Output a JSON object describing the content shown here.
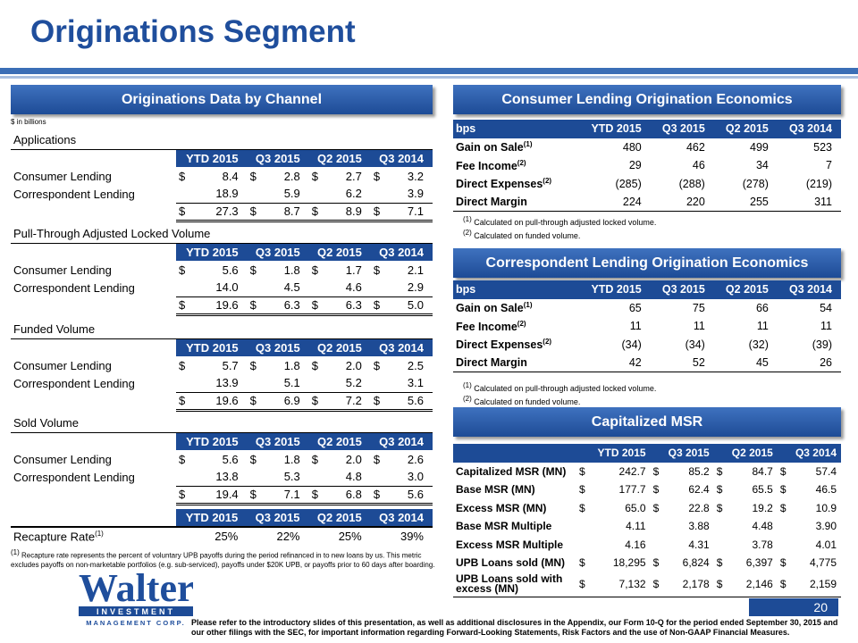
{
  "title": "Originations Segment",
  "left_banner": "Originations Data by Channel",
  "units": "$ in billions",
  "col_headers": [
    "YTD 2015",
    "Q3 2015",
    "Q2 2015",
    "Q3 2014"
  ],
  "applications": {
    "title": "Applications",
    "consumer": {
      "label": "Consumer Lending",
      "values": [
        "8.4",
        "2.8",
        "2.7",
        "3.2"
      ]
    },
    "correspondent": {
      "label": "Correspondent Lending",
      "values": [
        "18.9",
        "5.9",
        "6.2",
        "3.9"
      ]
    },
    "total": [
      "27.3",
      "8.7",
      "8.9",
      "7.1"
    ]
  },
  "pull_through": {
    "title": "Pull-Through Adjusted Locked Volume",
    "consumer": {
      "label": "Consumer Lending",
      "values": [
        "5.6",
        "1.8",
        "1.7",
        "2.1"
      ]
    },
    "correspondent": {
      "label": "Correspondent Lending",
      "values": [
        "14.0",
        "4.5",
        "4.6",
        "2.9"
      ]
    },
    "total": [
      "19.6",
      "6.3",
      "6.3",
      "5.0"
    ]
  },
  "funded": {
    "title": "Funded Volume",
    "consumer": {
      "label": "Consumer Lending",
      "values": [
        "5.7",
        "1.8",
        "2.0",
        "2.5"
      ]
    },
    "correspondent": {
      "label": "Correspondent Lending",
      "values": [
        "13.9",
        "5.1",
        "5.2",
        "3.1"
      ]
    },
    "total": [
      "19.6",
      "6.9",
      "7.2",
      "5.6"
    ]
  },
  "sold": {
    "title": "Sold Volume",
    "consumer": {
      "label": "Consumer Lending",
      "values": [
        "5.6",
        "1.8",
        "2.0",
        "2.6"
      ]
    },
    "correspondent": {
      "label": "Correspondent Lending",
      "values": [
        "13.8",
        "5.3",
        "4.8",
        "3.0"
      ]
    },
    "total": [
      "19.4",
      "7.1",
      "6.8",
      "5.6"
    ]
  },
  "recapture": {
    "label": "Recapture Rate",
    "sup": "(1)",
    "values": [
      "25%",
      "22%",
      "25%",
      "39%"
    ]
  },
  "left_footnote": "Recapture rate represents the percent of voluntary UPB payoffs during the period refinanced in to new loans by us.  This metric excludes payoffs on non-marketable portfolios (e.g. sub-serviced), payoffs under $20K UPB, or payoffs prior to 60 days after boarding.",
  "consumer_econ": {
    "title": "Consumer Lending Origination Economics",
    "head": "bps",
    "rows": [
      {
        "label": "Gain on Sale",
        "sup": "(1)",
        "values": [
          "480",
          "462",
          "499",
          "523"
        ]
      },
      {
        "label": "Fee Income",
        "sup": "(2)",
        "values": [
          "29",
          "46",
          "34",
          "7"
        ]
      },
      {
        "label": "Direct Expenses",
        "sup": "(2)",
        "values": [
          "(285)",
          "(288)",
          "(278)",
          "(219)"
        ]
      },
      {
        "label": "Direct Margin",
        "sup": "",
        "values": [
          "224",
          "220",
          "255",
          "311"
        ]
      }
    ],
    "note1": "Calculated on pull-through adjusted locked volume.",
    "note2": "Calculated on funded volume."
  },
  "correspondent_econ": {
    "title": "Correspondent Lending Origination Economics",
    "head": "bps",
    "rows": [
      {
        "label": "Gain on Sale",
        "sup": "(1)",
        "values": [
          "65",
          "75",
          "66",
          "54"
        ]
      },
      {
        "label": "Fee Income",
        "sup": "(2)",
        "values": [
          "11",
          "11",
          "11",
          "11"
        ]
      },
      {
        "label": "Direct Expenses",
        "sup": "(2)",
        "values": [
          "(34)",
          "(34)",
          "(32)",
          "(39)"
        ]
      },
      {
        "label": "Direct Margin",
        "sup": "",
        "values": [
          "42",
          "52",
          "45",
          "26"
        ]
      }
    ],
    "note1": "Calculated on pull-through adjusted locked volume.",
    "note2": "Calculated on funded volume."
  },
  "msr": {
    "title": "Capitalized MSR",
    "rows": [
      {
        "label": "Capitalized MSR (MN)",
        "dollar": true,
        "values": [
          "242.7",
          "85.2",
          "84.7",
          "57.4"
        ]
      },
      {
        "label": "Base MSR (MN)",
        "dollar": true,
        "values": [
          "177.7",
          "62.4",
          "65.5",
          "46.5"
        ]
      },
      {
        "label": "Excess MSR (MN)",
        "dollar": true,
        "values": [
          "65.0",
          "22.8",
          "19.2",
          "10.9"
        ]
      },
      {
        "label": "Base MSR Multiple",
        "dollar": false,
        "values": [
          "4.11",
          "3.88",
          "4.48",
          "3.90"
        ]
      },
      {
        "label": "Excess MSR Multiple",
        "dollar": false,
        "values": [
          "4.16",
          "4.31",
          "3.78",
          "4.01"
        ]
      },
      {
        "label": "UPB Loans sold (MN)",
        "dollar": true,
        "values": [
          "18,295",
          "6,824",
          "6,397",
          "4,775"
        ]
      },
      {
        "label": "UPB Loans sold with excess (MN)",
        "dollar": true,
        "values": [
          "7,132",
          "2,178",
          "2,146",
          "2,159"
        ]
      }
    ]
  },
  "logo": {
    "name": "Walter",
    "line2": "INVESTMENT",
    "line3": "MANAGEMENT CORP."
  },
  "page_number": "20",
  "disclaimer": "Please refer to the introductory slides of this presentation, as well as additional disclosures in the Appendix, our Form 10-Q for the period ended September 30, 2015 and our other filings with the SEC, for important information regarding Forward-Looking Statements, Risk Factors and the use of Non-GAAP Financial Measures.",
  "colors": {
    "navy": "#1d4b96",
    "title_blue": "#1f4e9c"
  }
}
